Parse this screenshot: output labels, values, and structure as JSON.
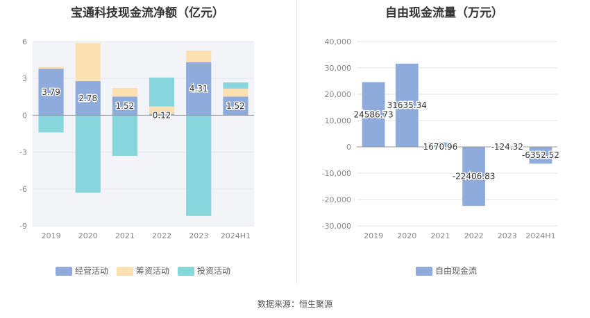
{
  "chart_data": [
    {
      "type": "bar",
      "stacked": true,
      "title": "宝通科技现金流净额（亿元）",
      "categories": [
        "2019",
        "2020",
        "2021",
        "2022",
        "2023",
        "2024H1"
      ],
      "ylim": [
        -9,
        6
      ],
      "yticks": [
        "6",
        "3",
        "0",
        "-3",
        "-6",
        "-9"
      ],
      "ytick_values": [
        6,
        3,
        0,
        -3,
        -6,
        -9
      ],
      "series": [
        {
          "name": "经营活动",
          "color": "#8eabdc",
          "values": [
            3.79,
            2.78,
            1.52,
            0.12,
            4.31,
            1.52
          ],
          "labels": [
            "3.79",
            "2.78",
            "1.52",
            "0.12",
            "4.31",
            "1.52"
          ]
        },
        {
          "name": "筹资活动",
          "color": "#fde0b1",
          "values": [
            0.15,
            3.1,
            0.7,
            0.6,
            0.95,
            0.65
          ]
        },
        {
          "name": "投资活动",
          "color": "#86d6dc",
          "values": [
            -1.4,
            -6.3,
            -3.3,
            2.35,
            -8.2,
            0.5
          ]
        }
      ],
      "legend": [
        "经营活动",
        "筹资活动",
        "投资活动"
      ]
    },
    {
      "type": "bar",
      "title": "自由现金流量（万元）",
      "categories": [
        "2019",
        "2020",
        "2021",
        "2022",
        "2023",
        "2024H1"
      ],
      "ylim": [
        -30000,
        40000
      ],
      "yticks": [
        "40,000",
        "30,000",
        "20,000",
        "10,000",
        "0",
        "-10,000",
        "-20,000",
        "-30,000"
      ],
      "ytick_values": [
        40000,
        30000,
        20000,
        10000,
        0,
        -10000,
        -20000,
        -30000
      ],
      "series": [
        {
          "name": "自由现金流",
          "color": "#8eabdc",
          "values": [
            24586.73,
            31635.34,
            1670.96,
            -22406.83,
            -124.32,
            -6352.52
          ],
          "labels": [
            "24586.73",
            "31635.34",
            "1670.96",
            "-22406.83",
            "-124.32",
            "-6352.52"
          ]
        }
      ],
      "legend": [
        "自由现金流"
      ]
    }
  ],
  "source": "数据来源：恒生聚源"
}
